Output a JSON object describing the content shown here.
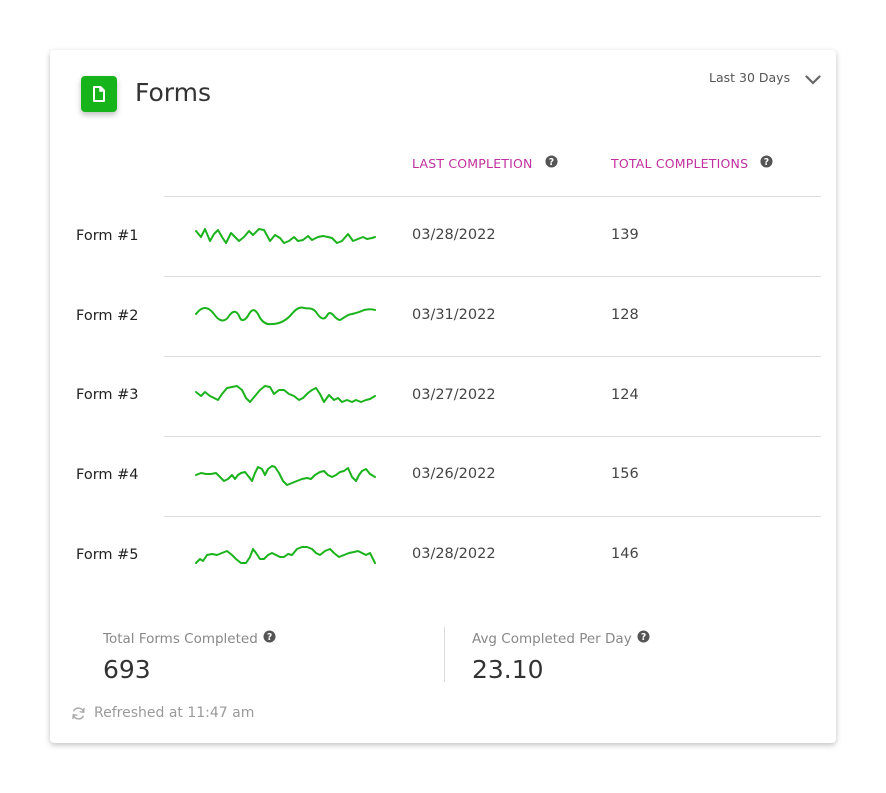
{
  "widget": {
    "title": "Forms",
    "icon": "document-icon",
    "accent_color": "#17b31a",
    "range_label": "Last 30 Days"
  },
  "columns": {
    "last_completion": "LAST COMPLETION",
    "total_completions": "TOTAL COMPLETIONS",
    "header_color": "#c12fa0"
  },
  "rows": [
    {
      "name": "Form #1",
      "last_completion": "03/28/2022",
      "total": "139"
    },
    {
      "name": "Form #2",
      "last_completion": "03/31/2022",
      "total": "128"
    },
    {
      "name": "Form #3",
      "last_completion": "03/27/2022",
      "total": "124"
    },
    {
      "name": "Form #4",
      "last_completion": "03/26/2022",
      "total": "156"
    },
    {
      "name": "Form #5",
      "last_completion": "03/28/2022",
      "total": "146"
    }
  ],
  "summary": {
    "total_label": "Total Forms Completed",
    "total_value": "693",
    "avg_label": "Avg Completed Per Day",
    "avg_value": "23.10"
  },
  "footer": {
    "refreshed": "Refreshed at 11:47 am"
  }
}
